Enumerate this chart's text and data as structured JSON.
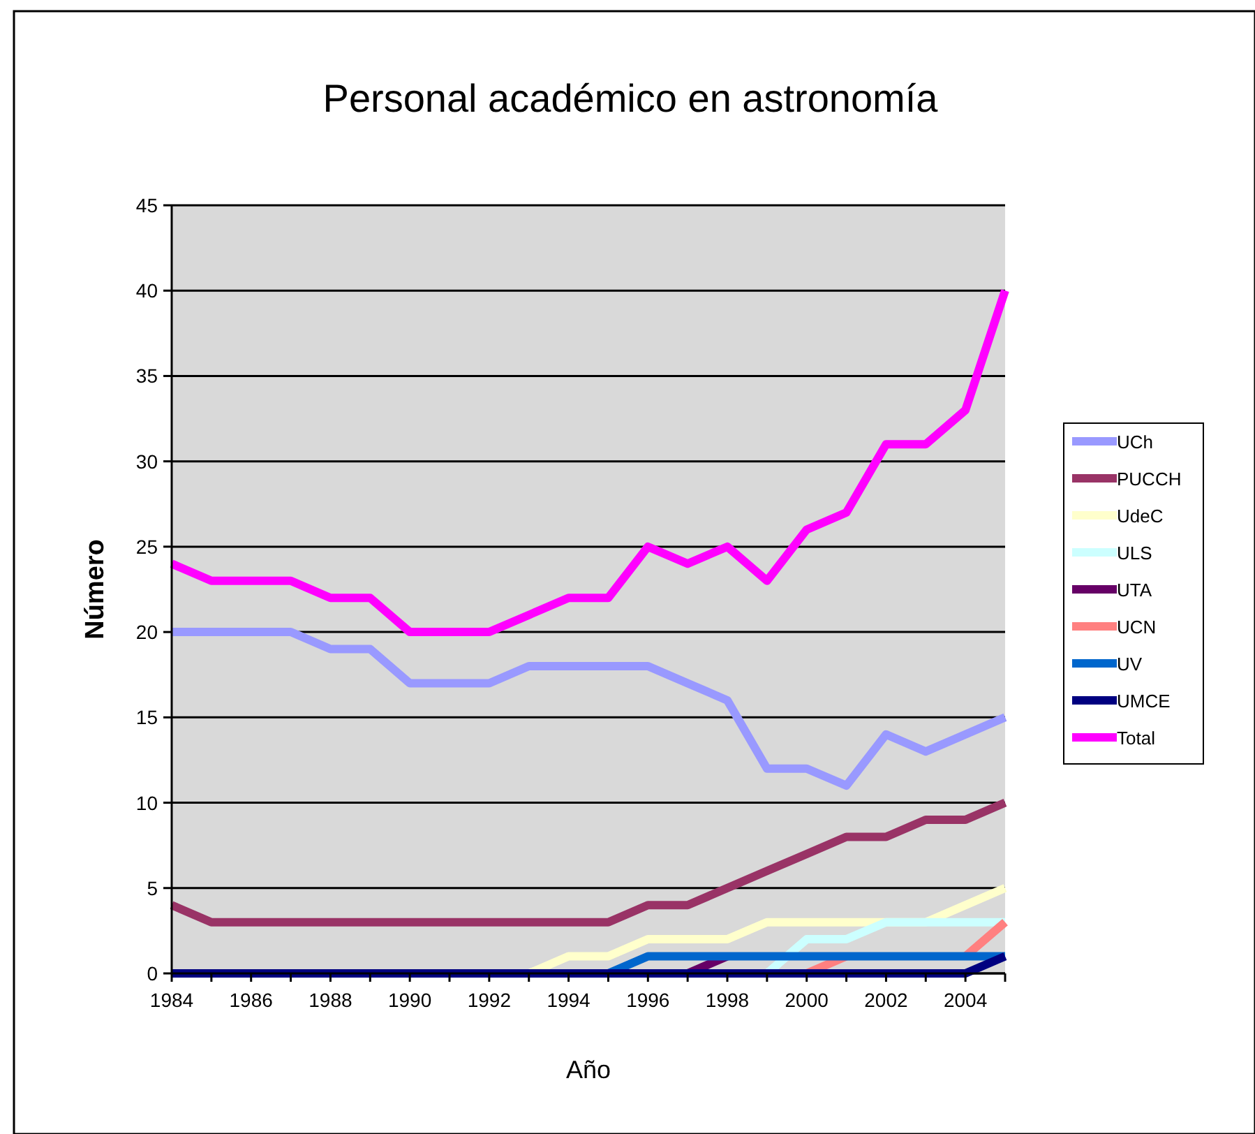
{
  "chart_data": {
    "type": "line",
    "title": "Personal académico en astronomía",
    "xlabel": "Año",
    "ylabel": "Número",
    "x": [
      1984,
      1985,
      1986,
      1987,
      1988,
      1989,
      1990,
      1991,
      1992,
      1993,
      1994,
      1995,
      1996,
      1997,
      1998,
      1999,
      2000,
      2001,
      2002,
      2003,
      2004,
      2005
    ],
    "xlim": [
      1984,
      2005
    ],
    "xticks": [
      1984,
      {
        "value": 1985,
        "label": null
      },
      1986,
      {
        "value": 1987,
        "label": null
      },
      1988,
      {
        "value": 1989,
        "label": null
      },
      1990,
      {
        "value": 1991,
        "label": null
      },
      1992,
      {
        "value": 1993,
        "label": null
      },
      1994,
      {
        "value": 1995,
        "label": null
      },
      1996,
      {
        "value": 1997,
        "label": null
      },
      1998,
      {
        "value": 1999,
        "label": null
      },
      2000,
      {
        "value": 2001,
        "label": null
      },
      2002,
      {
        "value": 2003,
        "label": null
      },
      2004,
      {
        "value": 2005,
        "label": null
      }
    ],
    "ylim": [
      0,
      45
    ],
    "yticks": [
      0,
      5,
      10,
      15,
      20,
      25,
      30,
      35,
      40,
      45
    ],
    "grid": "y",
    "legend": "right",
    "marker": "none",
    "line_style": "solid",
    "series": [
      {
        "name": "UCh",
        "color": "#9999ff",
        "values": [
          20,
          20,
          20,
          20,
          19,
          19,
          17,
          17,
          17,
          18,
          18,
          18,
          18,
          17,
          16,
          12,
          12,
          11,
          14,
          13,
          14,
          15
        ]
      },
      {
        "name": "PUCCH",
        "color": "#993366",
        "values": [
          4,
          3,
          3,
          3,
          3,
          3,
          3,
          3,
          3,
          3,
          3,
          3,
          4,
          4,
          5,
          6,
          7,
          8,
          8,
          9,
          9,
          10
        ]
      },
      {
        "name": "UdeC",
        "color": "#ffffcc",
        "values": [
          null,
          null,
          null,
          null,
          null,
          null,
          null,
          null,
          null,
          0,
          1,
          1,
          2,
          2,
          2,
          3,
          3,
          3,
          3,
          3,
          4,
          5
        ]
      },
      {
        "name": "ULS",
        "color": "#ccffff",
        "values": [
          null,
          null,
          null,
          null,
          null,
          null,
          null,
          null,
          null,
          null,
          null,
          null,
          null,
          null,
          null,
          0,
          2,
          2,
          3,
          3,
          3,
          3
        ]
      },
      {
        "name": "UTA",
        "color": "#660066",
        "values": [
          null,
          null,
          null,
          null,
          null,
          null,
          null,
          null,
          null,
          null,
          null,
          null,
          null,
          0,
          1,
          null,
          null,
          null,
          null,
          null,
          null,
          null
        ]
      },
      {
        "name": "UCN",
        "color": "#ff8080",
        "values": [
          null,
          null,
          null,
          null,
          null,
          null,
          null,
          null,
          null,
          null,
          null,
          null,
          null,
          null,
          null,
          null,
          0,
          1,
          null,
          null,
          1,
          3
        ]
      },
      {
        "name": "UV",
        "color": "#0066cc",
        "values": [
          null,
          null,
          null,
          null,
          null,
          null,
          null,
          null,
          null,
          null,
          null,
          0,
          1,
          1,
          1,
          1,
          1,
          1,
          1,
          1,
          1,
          1
        ]
      },
      {
        "name": "UMCE",
        "color": "#000080",
        "values": [
          0,
          0,
          0,
          0,
          0,
          0,
          0,
          0,
          0,
          0,
          0,
          0,
          0,
          0,
          0,
          0,
          0,
          0,
          0,
          0,
          0,
          1
        ]
      },
      {
        "name": "Total",
        "color": "#ff00ff",
        "values": [
          24,
          23,
          23,
          23,
          22,
          22,
          20,
          20,
          20,
          21,
          22,
          22,
          25,
          24,
          25,
          23,
          26,
          27,
          31,
          31,
          33,
          40
        ]
      }
    ]
  }
}
